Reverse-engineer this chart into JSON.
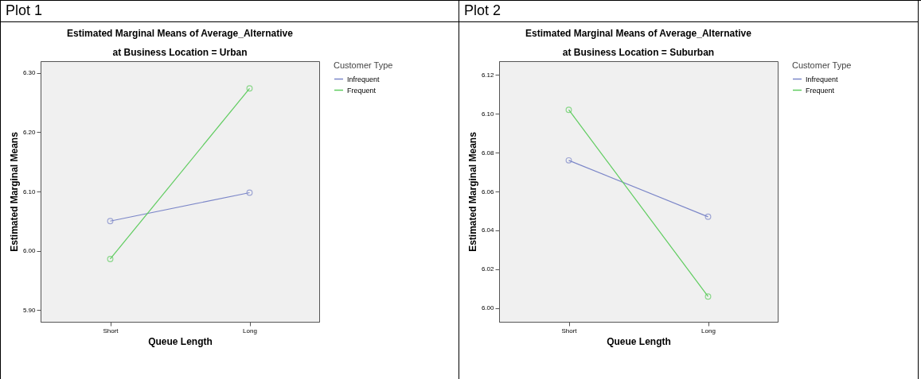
{
  "chart_data": [
    {
      "type": "line",
      "title": "Estimated Marginal Means of Average_Alternative",
      "subtitle": "at Business Location = Urban",
      "annotations": [
        "Plot 1"
      ],
      "xlabel": "Queue Length",
      "ylabel": "Estimated Marginal Means",
      "legend_title": "Customer Type",
      "categories": [
        "Short",
        "Long"
      ],
      "series": [
        {
          "name": "Infrequent",
          "color": "#7b86c8",
          "values": [
            6.05,
            6.098
          ]
        },
        {
          "name": "Frequent",
          "color": "#5fcc5f",
          "values": [
            5.986,
            6.274
          ]
        }
      ],
      "ylim": [
        5.88,
        6.32
      ],
      "yticks": [
        {
          "value": 5.9,
          "label": "5.90"
        },
        {
          "value": 6.0,
          "label": "6.00"
        },
        {
          "value": 6.1,
          "label": "6.10"
        },
        {
          "value": 6.2,
          "label": "6.20"
        },
        {
          "value": 6.3,
          "label": "6.30"
        }
      ],
      "grid": false,
      "legend": "top right",
      "marker": "circle"
    },
    {
      "type": "line",
      "title": "Estimated Marginal Means of Average_Alternative",
      "subtitle": "at Business Location = Suburban",
      "annotations": [
        "Plot 2"
      ],
      "xlabel": "Queue Length",
      "ylabel": "Estimated Marginal Means",
      "legend_title": "Customer Type",
      "categories": [
        "Short",
        "Long"
      ],
      "series": [
        {
          "name": "Infrequent",
          "color": "#7b86c8",
          "values": [
            6.076,
            6.047
          ]
        },
        {
          "name": "Frequent",
          "color": "#5fcc5f",
          "values": [
            6.102,
            6.006
          ]
        }
      ],
      "ylim": [
        5.993,
        6.127
      ],
      "yticks": [
        {
          "value": 6.0,
          "label": "6.00"
        },
        {
          "value": 6.02,
          "label": "6.02"
        },
        {
          "value": 6.04,
          "label": "6.04"
        },
        {
          "value": 6.06,
          "label": "6.06"
        },
        {
          "value": 6.08,
          "label": "6.08"
        },
        {
          "value": 6.1,
          "label": "6.10"
        },
        {
          "value": 6.12,
          "label": "6.12"
        }
      ],
      "grid": false,
      "legend": "top right",
      "marker": "circle"
    }
  ]
}
